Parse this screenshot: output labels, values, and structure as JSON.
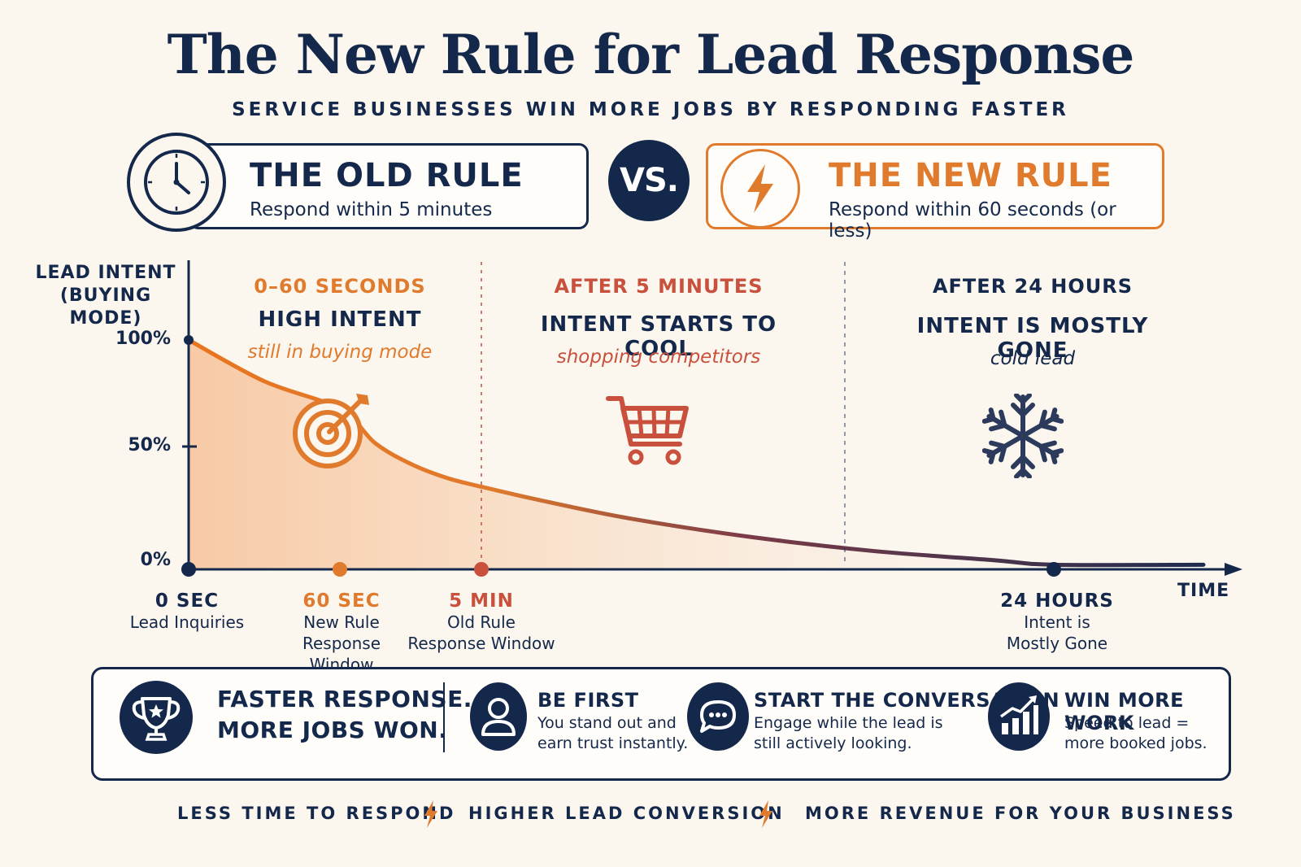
{
  "title": "The New Rule for Lead Response",
  "subtitle": "SERVICE BUSINESSES WIN MORE JOBS BY RESPONDING FASTER",
  "comparison": {
    "old": {
      "icon": "clock-icon",
      "heading": "THE OLD RULE",
      "text": "Respond within 5 minutes"
    },
    "vs": "VS.",
    "new": {
      "icon": "lightning-icon",
      "heading": "THE NEW RULE",
      "text": "Respond within 60 seconds (or less)"
    }
  },
  "colors": {
    "navy": "#14284b",
    "orange": "#e07a2c",
    "red": "#c8503c",
    "background": "#fbf6ee"
  },
  "chart_data": {
    "type": "area",
    "ylabel_line1": "LEAD INTENT",
    "ylabel_line2": "(BUYING MODE)",
    "xlabel": "TIME",
    "yticks": [
      "100%",
      "50%",
      "0%"
    ],
    "ylim": [
      0,
      100
    ],
    "series": [
      {
        "x": [
          0,
          0.5,
          1,
          2,
          3,
          4,
          5,
          7,
          10,
          14,
          18,
          22,
          24
        ],
        "values": [
          100,
          82,
          70,
          55,
          46,
          40,
          36,
          30,
          22,
          14,
          8,
          4,
          2
        ]
      }
    ],
    "x_unit_note_hidden": "",
    "xticks": [
      {
        "pos": 0,
        "label": "0 SEC",
        "sub": [
          "Lead Inquiries"
        ],
        "color": "#14284b"
      },
      {
        "pos": 1,
        "label": "60 SEC",
        "sub": [
          "New Rule",
          "Response Window"
        ],
        "color": "#e07a2c"
      },
      {
        "pos": 5,
        "label": "5 MIN",
        "sub": [
          "Old Rule",
          "Response Window"
        ],
        "color": "#c8503c"
      },
      {
        "pos": 24,
        "label": "24 HOURS",
        "sub": [
          "Intent is",
          "Mostly Gone"
        ],
        "color": "#14284b"
      }
    ],
    "annotations": [
      {
        "heading": "0–60 SECONDS",
        "status": "HIGH INTENT",
        "note": "still in buying mode",
        "icon": "target-icon"
      },
      {
        "heading": "AFTER 5 MINUTES",
        "status": "INTENT STARTS TO COOL",
        "note": "shopping competitors",
        "icon": "shopping-cart-icon"
      },
      {
        "heading": "AFTER 24 HOURS",
        "status": "INTENT IS MOSTLY GONE",
        "note": "cold lead",
        "icon": "snowflake-icon"
      }
    ]
  },
  "benefits": {
    "slogan_line1": "FASTER RESPONSE.",
    "slogan_line2": "MORE JOBS WON.",
    "slogan_icon": "trophy-icon",
    "items": [
      {
        "icon": "user-icon",
        "heading": "BE FIRST",
        "line1": "You stand out and",
        "line2": "earn trust instantly."
      },
      {
        "icon": "chat-bubble-icon",
        "heading": "START THE CONVERSATION",
        "line1": "Engage while the lead is",
        "line2": "still actively looking."
      },
      {
        "icon": "growth-chart-icon",
        "heading": "WIN MORE WORK",
        "line1": "Speed to lead =",
        "line2": "more booked jobs."
      }
    ]
  },
  "footer": [
    "LESS TIME TO RESPOND",
    "HIGHER LEAD CONVERSION",
    "MORE REVENUE FOR YOUR BUSINESS"
  ]
}
